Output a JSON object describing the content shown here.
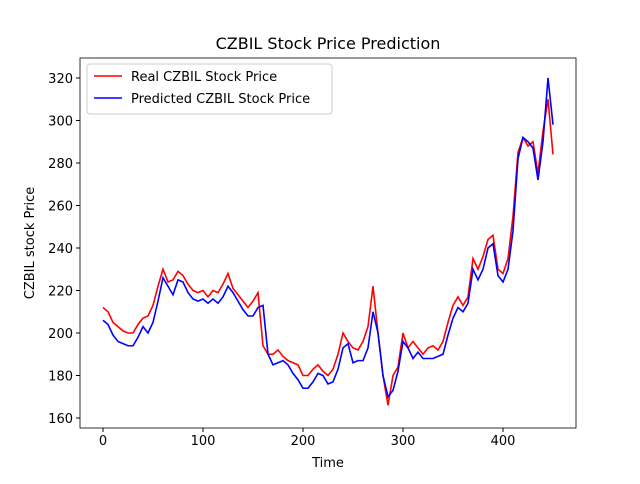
{
  "chart_data": {
    "type": "line",
    "title": "CZBIL Stock Price Prediction",
    "xlabel": "Time",
    "ylabel": "CZBIL stock Price",
    "x": [
      0,
      5,
      10,
      15,
      20,
      25,
      30,
      35,
      40,
      45,
      50,
      55,
      60,
      65,
      70,
      75,
      80,
      85,
      90,
      95,
      100,
      105,
      110,
      115,
      120,
      125,
      130,
      135,
      140,
      145,
      150,
      155,
      160,
      165,
      170,
      175,
      180,
      185,
      190,
      195,
      200,
      205,
      210,
      215,
      220,
      225,
      230,
      235,
      240,
      245,
      250,
      255,
      260,
      265,
      270,
      275,
      280,
      285,
      290,
      295,
      300,
      305,
      310,
      315,
      320,
      325,
      330,
      335,
      340,
      345,
      350,
      355,
      360,
      365,
      370,
      375,
      380,
      385,
      390,
      395,
      400,
      405,
      410,
      415,
      420,
      425,
      430,
      435,
      440,
      445,
      450
    ],
    "series": [
      {
        "name": "Real CZBIL Stock Price",
        "color": "#ff0000",
        "values": [
          212,
          210,
          205,
          203,
          201,
          200,
          200,
          204,
          207,
          208,
          213,
          222,
          230,
          224,
          225,
          229,
          227,
          223,
          220,
          219,
          220,
          217,
          220,
          219,
          223,
          228,
          221,
          218,
          215,
          212,
          215,
          219,
          194,
          190,
          190,
          192,
          189,
          187,
          186,
          185,
          180,
          180,
          183,
          185,
          182,
          180,
          183,
          190,
          200,
          196,
          193,
          192,
          196,
          203,
          222,
          200,
          180,
          166,
          180,
          184,
          200,
          193,
          196,
          193,
          190,
          193,
          194,
          192,
          196,
          205,
          213,
          217,
          213,
          217,
          235,
          230,
          236,
          244,
          246,
          230,
          228,
          235,
          255,
          285,
          292,
          288,
          290,
          275,
          295,
          310,
          284
        ]
      },
      {
        "name": "Predicted CZBIL Stock Price",
        "color": "#0000ff",
        "values": [
          206,
          204,
          199,
          196,
          195,
          194,
          194,
          198,
          203,
          200,
          205,
          215,
          226,
          222,
          218,
          225,
          224,
          219,
          216,
          215,
          216,
          214,
          216,
          214,
          217,
          222,
          219,
          215,
          211,
          208,
          208,
          212,
          213,
          190,
          185,
          186,
          187,
          185,
          181,
          178,
          174,
          174,
          177,
          181,
          180,
          176,
          177,
          183,
          193,
          195,
          186,
          187,
          187,
          193,
          210,
          200,
          180,
          170,
          173,
          182,
          196,
          193,
          188,
          191,
          188,
          188,
          188,
          189,
          190,
          199,
          207,
          212,
          210,
          214,
          230,
          225,
          230,
          240,
          242,
          227,
          224,
          230,
          248,
          282,
          292,
          290,
          287,
          272,
          290,
          320,
          298
        ]
      }
    ],
    "xlim": [
      -23,
      473
    ],
    "xticks": [
      0,
      100,
      200,
      300,
      400
    ],
    "ylim": [
      155.3,
      329.4
    ],
    "yticks": [
      160,
      180,
      200,
      220,
      240,
      260,
      280,
      300,
      320
    ],
    "legend": "upper left"
  }
}
